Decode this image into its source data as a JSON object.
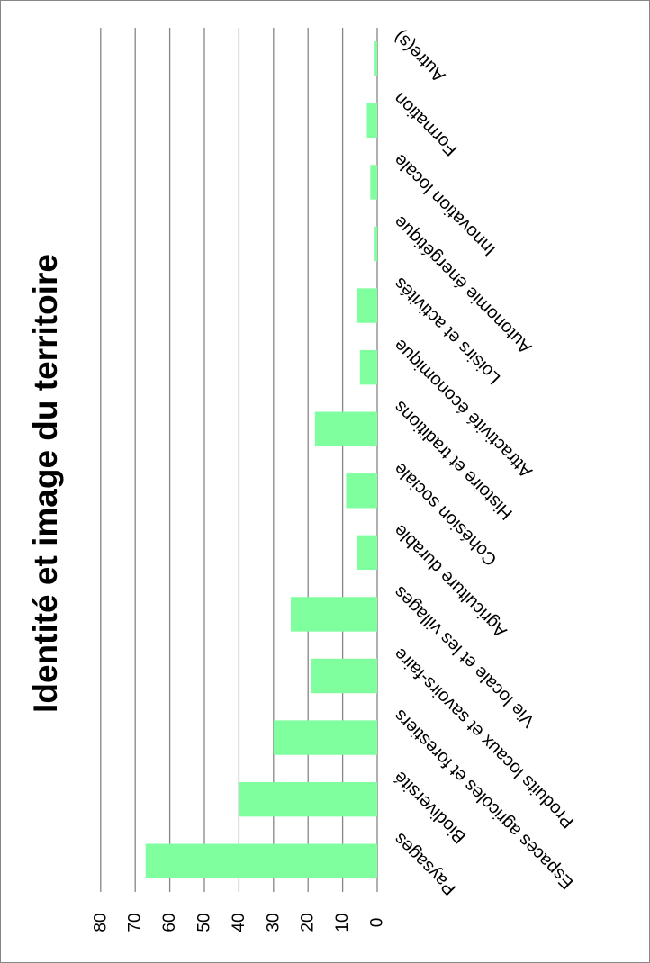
{
  "chart_data": {
    "type": "bar",
    "orientation": "horizontal",
    "rotation": "page rotated 90 degrees clockwise",
    "title": "Identité et image du territoire",
    "categories": [
      "Paysages",
      "Biodiversité",
      "Espaces agricoles et forestiers",
      "Produits locaux et savoirs-faire",
      "Vie locale et les villages",
      "Agriculture durable",
      "Cohésion sociale",
      "Histoire et traditions",
      "Attractivité économique",
      "Loisirs et activités",
      "Autonomie énergétique",
      "Innovation locale",
      "Formation",
      "Autre(s)"
    ],
    "values": [
      67,
      40,
      30,
      19,
      25,
      6,
      9,
      18,
      5,
      6,
      1,
      2,
      3,
      1
    ],
    "xlim": [
      0,
      80
    ],
    "ticks": [
      0,
      10,
      20,
      30,
      40,
      50,
      60,
      70,
      80
    ],
    "tick_labels": [
      "0",
      "10",
      "20",
      "30",
      "40",
      "50",
      "60",
      "70",
      "80"
    ],
    "grid": true,
    "legend": "none",
    "bar_color": "#7fff9e",
    "grid_color": "#868686"
  }
}
